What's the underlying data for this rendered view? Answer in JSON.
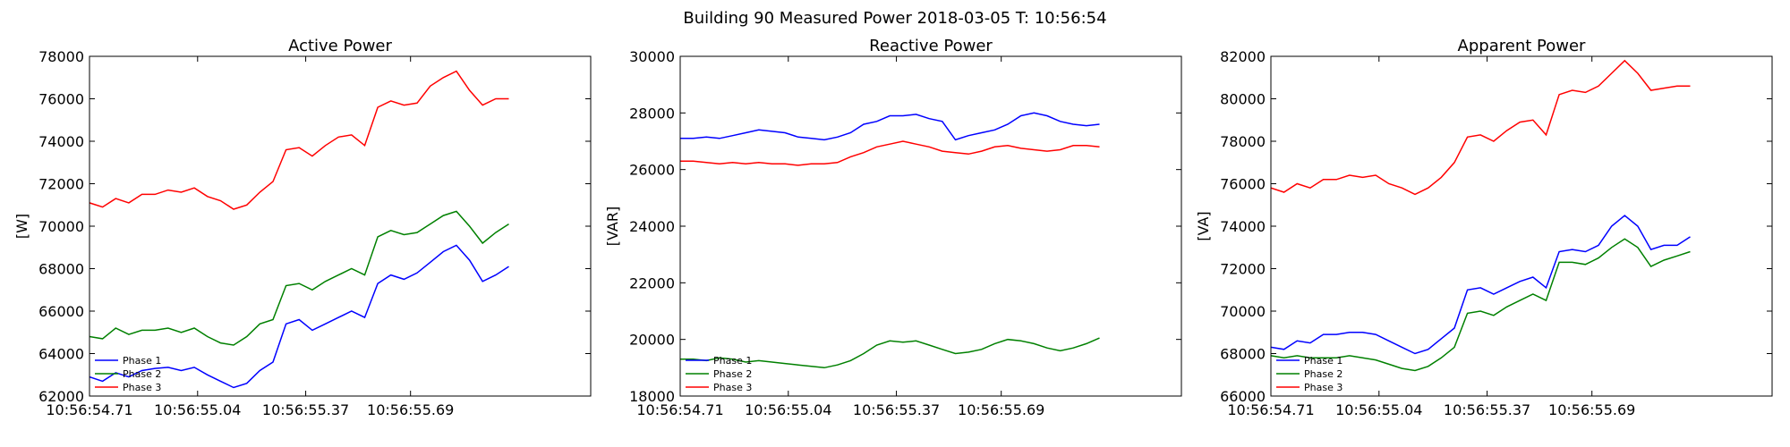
{
  "suptitle": "Building 90 Measured Power 2018-03-05 T: 10:56:54",
  "colors": {
    "phase1": "#0000ff",
    "phase2": "#008000",
    "phase3": "#ff0000"
  },
  "chart_data": [
    {
      "type": "line",
      "title": "Active Power",
      "ylabel": "[W]",
      "xlabel": "",
      "xlim": [
        0,
        1.53
      ],
      "x_ticks": [
        0,
        0.33,
        0.66,
        0.98
      ],
      "x_tick_labels": [
        "10:56:54.71",
        "10:56:55.04",
        "10:56:55.37",
        "10:56:55.69"
      ],
      "ylim": [
        62000,
        78000
      ],
      "y_ticks": [
        62000,
        64000,
        66000,
        68000,
        70000,
        72000,
        74000,
        76000,
        78000
      ],
      "y_tick_labels": [
        "62000",
        "64000",
        "66000",
        "68000",
        "70000",
        "72000",
        "74000",
        "76000",
        "78000"
      ],
      "legend": "lower-left",
      "grid": false,
      "x": [
        0,
        0.04,
        0.08,
        0.12,
        0.16,
        0.2,
        0.24,
        0.28,
        0.32,
        0.36,
        0.4,
        0.44,
        0.48,
        0.52,
        0.56,
        0.6,
        0.64,
        0.68,
        0.72,
        0.76,
        0.8,
        0.84,
        0.88,
        0.92,
        0.96,
        1.0,
        1.04,
        1.08,
        1.12,
        1.16,
        1.2,
        1.24,
        1.28
      ],
      "series": [
        {
          "name": "Phase 1",
          "color": "#0000ff",
          "values": [
            62900,
            62700,
            63100,
            62900,
            63200,
            63300,
            63350,
            63200,
            63350,
            63000,
            62700,
            62400,
            62600,
            63200,
            63600,
            65400,
            65600,
            65100,
            65400,
            65700,
            66000,
            65700,
            67300,
            67700,
            67500,
            67800,
            68300,
            68800,
            69100,
            68400,
            67400,
            67700,
            68100
          ]
        },
        {
          "name": "Phase 2",
          "color": "#008000",
          "values": [
            64800,
            64700,
            65200,
            64900,
            65100,
            65100,
            65200,
            65000,
            65200,
            64800,
            64500,
            64400,
            64800,
            65400,
            65600,
            67200,
            67300,
            67000,
            67400,
            67700,
            68000,
            67700,
            69500,
            69800,
            69600,
            69700,
            70100,
            70500,
            70700,
            70000,
            69200,
            69700,
            70100
          ]
        },
        {
          "name": "Phase 3",
          "color": "#ff0000",
          "values": [
            71100,
            70900,
            71300,
            71100,
            71500,
            71500,
            71700,
            71600,
            71800,
            71400,
            71200,
            70800,
            71000,
            71600,
            72100,
            73600,
            73700,
            73300,
            73800,
            74200,
            74300,
            73800,
            75600,
            75900,
            75700,
            75800,
            76600,
            77000,
            77300,
            76400,
            75700,
            76000,
            76000
          ]
        }
      ]
    },
    {
      "type": "line",
      "title": "Reactive Power",
      "ylabel": "[VAR]",
      "xlabel": "",
      "xlim": [
        0,
        1.53
      ],
      "x_ticks": [
        0,
        0.33,
        0.66,
        0.98
      ],
      "x_tick_labels": [
        "10:56:54.71",
        "10:56:55.04",
        "10:56:55.37",
        "10:56:55.69"
      ],
      "ylim": [
        18000,
        30000
      ],
      "y_ticks": [
        18000,
        20000,
        22000,
        24000,
        26000,
        28000,
        30000
      ],
      "y_tick_labels": [
        "18000",
        "20000",
        "22000",
        "24000",
        "26000",
        "28000",
        "30000"
      ],
      "legend": "lower-left",
      "grid": false,
      "x": [
        0,
        0.04,
        0.08,
        0.12,
        0.16,
        0.2,
        0.24,
        0.28,
        0.32,
        0.36,
        0.4,
        0.44,
        0.48,
        0.52,
        0.56,
        0.6,
        0.64,
        0.68,
        0.72,
        0.76,
        0.8,
        0.84,
        0.88,
        0.92,
        0.96,
        1.0,
        1.04,
        1.08,
        1.12,
        1.16,
        1.2,
        1.24,
        1.28
      ],
      "series": [
        {
          "name": "Phase 1",
          "color": "#0000ff",
          "values": [
            27100,
            27100,
            27150,
            27100,
            27200,
            27300,
            27400,
            27350,
            27300,
            27150,
            27100,
            27050,
            27150,
            27300,
            27600,
            27700,
            27900,
            27900,
            27950,
            27800,
            27700,
            27050,
            27200,
            27300,
            27400,
            27600,
            27900,
            28000,
            27900,
            27700,
            27600,
            27550,
            27600
          ]
        },
        {
          "name": "Phase 2",
          "color": "#008000",
          "values": [
            19300,
            19300,
            19250,
            19350,
            19300,
            19200,
            19250,
            19200,
            19150,
            19100,
            19050,
            19000,
            19100,
            19250,
            19500,
            19800,
            19950,
            19900,
            19950,
            19800,
            19650,
            19500,
            19550,
            19650,
            19850,
            20000,
            19950,
            19850,
            19700,
            19600,
            19700,
            19850,
            20050
          ]
        },
        {
          "name": "Phase 3",
          "color": "#ff0000",
          "values": [
            26300,
            26300,
            26250,
            26200,
            26250,
            26200,
            26250,
            26200,
            26200,
            26150,
            26200,
            26200,
            26250,
            26450,
            26600,
            26800,
            26900,
            27000,
            26900,
            26800,
            26650,
            26600,
            26550,
            26650,
            26800,
            26850,
            26750,
            26700,
            26650,
            26700,
            26850,
            26850,
            26800
          ]
        }
      ]
    },
    {
      "type": "line",
      "title": "Apparent Power",
      "ylabel": "[VA]",
      "xlabel": "",
      "xlim": [
        0,
        1.53
      ],
      "x_ticks": [
        0,
        0.33,
        0.66,
        0.98
      ],
      "x_tick_labels": [
        "10:56:54.71",
        "10:56:55.04",
        "10:56:55.37",
        "10:56:55.69"
      ],
      "ylim": [
        66000,
        82000
      ],
      "y_ticks": [
        66000,
        68000,
        70000,
        72000,
        74000,
        76000,
        78000,
        80000,
        82000
      ],
      "y_tick_labels": [
        "66000",
        "68000",
        "70000",
        "72000",
        "74000",
        "76000",
        "78000",
        "80000",
        "82000"
      ],
      "legend": "lower-left",
      "grid": false,
      "x": [
        0,
        0.04,
        0.08,
        0.12,
        0.16,
        0.2,
        0.24,
        0.28,
        0.32,
        0.36,
        0.4,
        0.44,
        0.48,
        0.52,
        0.56,
        0.6,
        0.64,
        0.68,
        0.72,
        0.76,
        0.8,
        0.84,
        0.88,
        0.92,
        0.96,
        1.0,
        1.04,
        1.08,
        1.12,
        1.16,
        1.2,
        1.24,
        1.28
      ],
      "series": [
        {
          "name": "Phase 1",
          "color": "#0000ff",
          "values": [
            68300,
            68200,
            68600,
            68500,
            68900,
            68900,
            69000,
            69000,
            68900,
            68600,
            68300,
            68000,
            68200,
            68700,
            69200,
            71000,
            71100,
            70800,
            71100,
            71400,
            71600,
            71100,
            72800,
            72900,
            72800,
            73100,
            74000,
            74500,
            74000,
            72900,
            73100,
            73100,
            73500
          ]
        },
        {
          "name": "Phase 2",
          "color": "#008000",
          "values": [
            67900,
            67800,
            67900,
            67800,
            67800,
            67800,
            67900,
            67800,
            67700,
            67500,
            67300,
            67200,
            67400,
            67800,
            68300,
            69900,
            70000,
            69800,
            70200,
            70500,
            70800,
            70500,
            72300,
            72300,
            72200,
            72500,
            73000,
            73400,
            73000,
            72100,
            72400,
            72600,
            72800
          ]
        },
        {
          "name": "Phase 3",
          "color": "#ff0000",
          "values": [
            75800,
            75600,
            76000,
            75800,
            76200,
            76200,
            76400,
            76300,
            76400,
            76000,
            75800,
            75500,
            75800,
            76300,
            77000,
            78200,
            78300,
            78000,
            78500,
            78900,
            79000,
            78300,
            80200,
            80400,
            80300,
            80600,
            81200,
            81800,
            81200,
            80400,
            80500,
            80600,
            80600
          ]
        }
      ]
    }
  ]
}
